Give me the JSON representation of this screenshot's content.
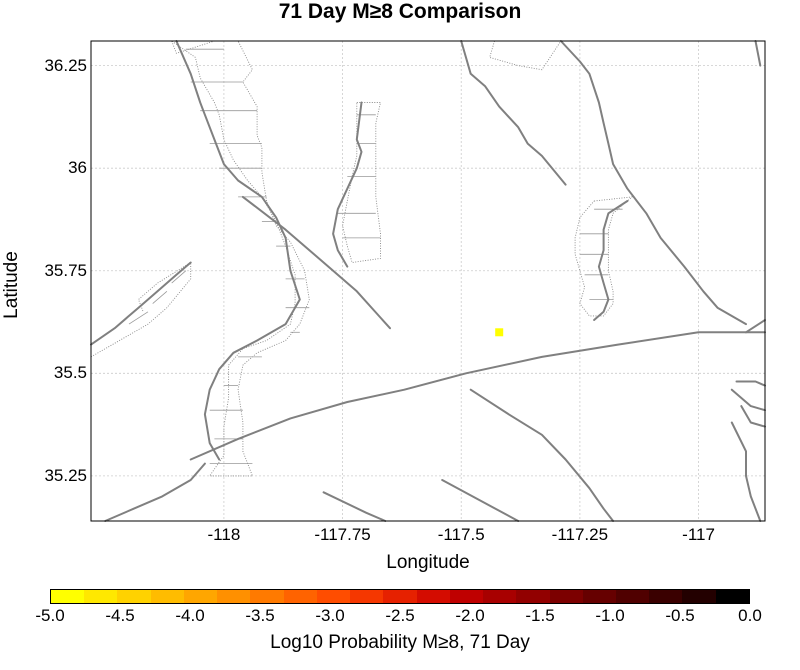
{
  "title": "71 Day M≥8 Comparison",
  "map": {
    "xlabel": "Longitude",
    "ylabel": "Latitude",
    "xlim": [
      -118.28,
      -116.86
    ],
    "ylim": [
      35.14,
      36.31
    ],
    "grid": true,
    "fault_color": "#808080",
    "xticks": [
      {
        "value": -118,
        "label": "-118"
      },
      {
        "value": -117.75,
        "label": "-117.75"
      },
      {
        "value": -117.5,
        "label": "-117.5"
      },
      {
        "value": -117.25,
        "label": "-117.25"
      },
      {
        "value": -117,
        "label": "-117"
      }
    ],
    "yticks": [
      {
        "value": 36.25,
        "label": "36.25"
      },
      {
        "value": 36,
        "label": "36"
      },
      {
        "value": 35.75,
        "label": "35.75"
      },
      {
        "value": 35.5,
        "label": "35.5"
      },
      {
        "value": 35.25,
        "label": "35.25"
      }
    ],
    "highlight_cell": {
      "lon": -117.42,
      "lat": 35.6,
      "color": "#ffff00"
    },
    "faults": [
      [
        [
          -118.1,
          36.31
        ],
        [
          -118.07,
          36.23
        ],
        [
          -118.05,
          36.16
        ],
        [
          -118.04,
          36.13
        ],
        [
          -118.02,
          36.07
        ],
        [
          -118.0,
          36.01
        ],
        [
          -117.97,
          35.97
        ],
        [
          -117.92,
          35.93
        ],
        [
          -117.89,
          35.88
        ],
        [
          -117.87,
          35.83
        ],
        [
          -117.86,
          35.75
        ],
        [
          -117.84,
          35.68
        ],
        [
          -117.87,
          35.62
        ],
        [
          -117.93,
          35.58
        ],
        [
          -117.98,
          35.55
        ],
        [
          -118.01,
          35.51
        ],
        [
          -118.03,
          35.46
        ],
        [
          -118.04,
          35.4
        ],
        [
          -118.03,
          35.33
        ],
        [
          -118.01,
          35.29
        ]
      ],
      [
        [
          -117.96,
          35.93
        ],
        [
          -117.87,
          35.85
        ],
        [
          -117.79,
          35.77
        ],
        [
          -117.72,
          35.7
        ],
        [
          -117.65,
          35.61
        ]
      ],
      [
        [
          -117.71,
          36.16
        ],
        [
          -117.72,
          36.07
        ],
        [
          -117.71,
          36.04
        ],
        [
          -117.72,
          36.0
        ],
        [
          -117.74,
          35.95
        ],
        [
          -117.76,
          35.9
        ],
        [
          -117.77,
          35.84
        ],
        [
          -117.76,
          35.8
        ],
        [
          -117.74,
          35.76
        ]
      ],
      [
        [
          -117.5,
          36.31
        ],
        [
          -117.48,
          36.23
        ],
        [
          -117.45,
          36.2
        ],
        [
          -117.42,
          36.15
        ],
        [
          -117.38,
          36.1
        ],
        [
          -117.36,
          36.06
        ],
        [
          -117.33,
          36.03
        ],
        [
          -117.28,
          35.96
        ]
      ],
      [
        [
          -117.29,
          36.31
        ],
        [
          -117.25,
          36.26
        ],
        [
          -117.23,
          36.23
        ],
        [
          -117.21,
          36.16
        ],
        [
          -117.2,
          36.11
        ],
        [
          -117.19,
          36.06
        ],
        [
          -117.18,
          36.01
        ],
        [
          -117.15,
          35.95
        ],
        [
          -117.11,
          35.89
        ],
        [
          -117.08,
          35.83
        ],
        [
          -117.03,
          35.76
        ],
        [
          -116.99,
          35.7
        ],
        [
          -116.96,
          35.66
        ],
        [
          -116.9,
          35.62
        ]
      ],
      [
        [
          -116.88,
          36.31
        ],
        [
          -116.87,
          36.25
        ]
      ],
      [
        [
          -117.15,
          35.92
        ],
        [
          -117.19,
          35.89
        ],
        [
          -117.2,
          35.85
        ],
        [
          -117.2,
          35.8
        ],
        [
          -117.21,
          35.76
        ],
        [
          -117.2,
          35.72
        ],
        [
          -117.19,
          35.68
        ],
        [
          -117.2,
          35.65
        ],
        [
          -117.22,
          35.63
        ]
      ],
      [
        [
          -118.28,
          35.57
        ],
        [
          -118.23,
          35.61
        ],
        [
          -118.18,
          35.66
        ],
        [
          -118.14,
          35.7
        ],
        [
          -118.1,
          35.74
        ],
        [
          -118.07,
          35.77
        ]
      ],
      [
        [
          -118.07,
          35.29
        ],
        [
          -117.97,
          35.34
        ],
        [
          -117.86,
          35.39
        ],
        [
          -117.74,
          35.43
        ],
        [
          -117.62,
          35.46
        ],
        [
          -117.49,
          35.5
        ],
        [
          -117.33,
          35.54
        ],
        [
          -117.17,
          35.57
        ],
        [
          -117.0,
          35.6
        ],
        [
          -116.86,
          35.6
        ]
      ],
      [
        [
          -118.25,
          35.14
        ],
        [
          -118.19,
          35.17
        ],
        [
          -118.13,
          35.2
        ],
        [
          -118.07,
          35.24
        ],
        [
          -118.04,
          35.28
        ]
      ],
      [
        [
          -117.79,
          35.21
        ],
        [
          -117.7,
          35.16
        ],
        [
          -117.66,
          35.14
        ]
      ],
      [
        [
          -117.48,
          35.46
        ],
        [
          -117.4,
          35.4
        ],
        [
          -117.33,
          35.35
        ],
        [
          -117.28,
          35.29
        ],
        [
          -117.23,
          35.22
        ],
        [
          -117.2,
          35.17
        ],
        [
          -117.18,
          35.14
        ]
      ],
      [
        [
          -117.54,
          35.24
        ],
        [
          -117.46,
          35.19
        ],
        [
          -117.38,
          35.14
        ]
      ],
      [
        [
          -116.92,
          35.48
        ],
        [
          -116.88,
          35.48
        ],
        [
          -116.86,
          35.47
        ]
      ],
      [
        [
          -116.93,
          35.46
        ],
        [
          -116.89,
          35.42
        ],
        [
          -116.86,
          35.41
        ]
      ],
      [
        [
          -116.91,
          35.42
        ],
        [
          -116.89,
          35.38
        ],
        [
          -116.86,
          35.37
        ]
      ],
      [
        [
          -116.93,
          35.38
        ],
        [
          -116.9,
          35.31
        ],
        [
          -116.9,
          35.25
        ],
        [
          -116.89,
          35.2
        ],
        [
          -116.87,
          35.14
        ]
      ],
      [
        [
          -116.9,
          35.6
        ],
        [
          -116.86,
          35.63
        ]
      ]
    ],
    "dotted_outlines": [
      [
        [
          -118.11,
          36.31
        ],
        [
          -118.1,
          36.28
        ],
        [
          -118.02,
          36.31
        ],
        [
          -117.97,
          36.31
        ],
        [
          -117.94,
          36.24
        ],
        [
          -117.96,
          36.21
        ],
        [
          -117.93,
          36.15
        ],
        [
          -117.93,
          36.08
        ],
        [
          -117.92,
          36.05
        ],
        [
          -117.92,
          35.99
        ],
        [
          -117.91,
          35.92
        ],
        [
          -117.89,
          35.86
        ],
        [
          -117.86,
          35.82
        ],
        [
          -117.83,
          35.75
        ],
        [
          -117.82,
          35.68
        ],
        [
          -117.84,
          35.62
        ],
        [
          -117.87,
          35.58
        ],
        [
          -117.93,
          35.55
        ],
        [
          -117.96,
          35.52
        ],
        [
          -117.97,
          35.46
        ],
        [
          -117.96,
          35.38
        ],
        [
          -117.96,
          35.31
        ],
        [
          -117.94,
          35.25
        ],
        [
          -118.03,
          35.25
        ],
        [
          -118.0,
          35.3
        ],
        [
          -118.0,
          35.37
        ],
        [
          -117.99,
          35.44
        ],
        [
          -117.99,
          35.52
        ],
        [
          -117.96,
          35.56
        ],
        [
          -117.91,
          35.58
        ],
        [
          -117.86,
          35.62
        ],
        [
          -117.85,
          35.67
        ],
        [
          -117.85,
          35.74
        ],
        [
          -117.87,
          35.81
        ],
        [
          -117.89,
          35.87
        ],
        [
          -117.92,
          35.93
        ],
        [
          -117.95,
          35.97
        ],
        [
          -117.98,
          36.02
        ],
        [
          -118.0,
          36.07
        ],
        [
          -118.01,
          36.13
        ],
        [
          -118.02,
          36.16
        ],
        [
          -118.05,
          36.22
        ],
        [
          -118.06,
          36.27
        ],
        [
          -118.11,
          36.31
        ]
      ],
      [
        [
          -117.72,
          36.16
        ],
        [
          -117.67,
          36.16
        ],
        [
          -117.68,
          36.11
        ],
        [
          -117.68,
          36.06
        ],
        [
          -117.68,
          36.01
        ],
        [
          -117.68,
          35.93
        ],
        [
          -117.67,
          35.84
        ],
        [
          -117.67,
          35.78
        ],
        [
          -117.73,
          35.77
        ],
        [
          -117.74,
          35.81
        ],
        [
          -117.75,
          35.86
        ],
        [
          -117.74,
          35.92
        ],
        [
          -117.73,
          35.98
        ],
        [
          -117.72,
          36.03
        ],
        [
          -117.72,
          36.08
        ],
        [
          -117.72,
          36.16
        ]
      ],
      [
        [
          -117.22,
          35.92
        ],
        [
          -117.14,
          35.93
        ],
        [
          -117.18,
          35.89
        ],
        [
          -117.19,
          35.85
        ],
        [
          -117.19,
          35.8
        ],
        [
          -117.19,
          35.75
        ],
        [
          -117.18,
          35.7
        ],
        [
          -117.18,
          35.67
        ],
        [
          -117.2,
          35.64
        ],
        [
          -117.23,
          35.64
        ],
        [
          -117.25,
          35.67
        ],
        [
          -117.24,
          35.71
        ],
        [
          -117.25,
          35.75
        ],
        [
          -117.26,
          35.79
        ],
        [
          -117.26,
          35.83
        ],
        [
          -117.25,
          35.88
        ],
        [
          -117.22,
          35.92
        ]
      ],
      [
        [
          -118.28,
          35.54
        ],
        [
          -118.22,
          35.58
        ],
        [
          -118.16,
          35.62
        ],
        [
          -118.12,
          35.66
        ],
        [
          -118.07,
          35.73
        ],
        [
          -118.07,
          35.77
        ],
        [
          -118.14,
          35.72
        ],
        [
          -118.18,
          35.68
        ],
        [
          -118.17,
          35.65
        ]
      ],
      [
        [
          -117.43,
          36.31
        ],
        [
          -117.44,
          36.27
        ],
        [
          -117.38,
          36.25
        ],
        [
          -117.33,
          36.24
        ],
        [
          -117.29,
          36.31
        ]
      ]
    ],
    "hatch_lines": [
      [
        [
          -118.08,
          36.29
        ],
        [
          -118.0,
          36.29
        ]
      ],
      [
        [
          -118.07,
          36.21
        ],
        [
          -117.96,
          36.21
        ]
      ],
      [
        [
          -118.05,
          36.14
        ],
        [
          -117.93,
          36.14
        ]
      ],
      [
        [
          -118.03,
          36.06
        ],
        [
          -117.92,
          36.06
        ]
      ],
      [
        [
          -118.01,
          36.0
        ],
        [
          -117.92,
          36.0
        ]
      ],
      [
        [
          -117.97,
          35.93
        ],
        [
          -117.91,
          35.93
        ]
      ],
      [
        [
          -117.92,
          35.87
        ],
        [
          -117.89,
          35.87
        ]
      ],
      [
        [
          -117.89,
          35.81
        ],
        [
          -117.86,
          35.81
        ]
      ],
      [
        [
          -117.87,
          35.73
        ],
        [
          -117.83,
          35.73
        ]
      ],
      [
        [
          -117.87,
          35.66
        ],
        [
          -117.82,
          35.66
        ]
      ],
      [
        [
          -117.86,
          35.6
        ],
        [
          -117.84,
          35.6
        ]
      ],
      [
        [
          -117.97,
          35.54
        ],
        [
          -117.92,
          35.54
        ]
      ],
      [
        [
          -118.0,
          35.47
        ],
        [
          -117.97,
          35.47
        ]
      ],
      [
        [
          -118.03,
          35.41
        ],
        [
          -117.96,
          35.41
        ]
      ],
      [
        [
          -118.02,
          35.34
        ],
        [
          -117.96,
          35.34
        ]
      ],
      [
        [
          -118.03,
          35.28
        ],
        [
          -117.94,
          35.28
        ]
      ],
      [
        [
          -117.72,
          36.13
        ],
        [
          -117.68,
          36.13
        ]
      ],
      [
        [
          -117.72,
          36.06
        ],
        [
          -117.68,
          36.06
        ]
      ],
      [
        [
          -117.74,
          35.98
        ],
        [
          -117.68,
          35.98
        ]
      ],
      [
        [
          -117.76,
          35.89
        ],
        [
          -117.68,
          35.89
        ]
      ],
      [
        [
          -117.75,
          35.83
        ],
        [
          -117.67,
          35.83
        ]
      ],
      [
        [
          -117.22,
          35.9
        ],
        [
          -117.16,
          35.9
        ]
      ],
      [
        [
          -117.25,
          35.84
        ],
        [
          -117.19,
          35.84
        ]
      ],
      [
        [
          -117.25,
          35.79
        ],
        [
          -117.19,
          35.79
        ]
      ],
      [
        [
          -117.24,
          35.74
        ],
        [
          -117.19,
          35.74
        ]
      ],
      [
        [
          -117.23,
          35.68
        ],
        [
          -117.18,
          35.68
        ]
      ],
      [
        [
          -118.2,
          35.62
        ],
        [
          -118.16,
          35.65
        ]
      ],
      [
        [
          -118.15,
          35.67
        ],
        [
          -118.12,
          35.7
        ]
      ],
      [
        [
          -118.11,
          35.72
        ],
        [
          -118.08,
          35.75
        ]
      ]
    ]
  },
  "colorbar": {
    "label": "Log10 Probability M≥8, 71 Day",
    "ticks": [
      "-5.0",
      "-4.5",
      "-4.0",
      "-3.5",
      "-3.0",
      "-2.5",
      "-2.0",
      "-1.5",
      "-1.0",
      "-0.5",
      "0.0"
    ],
    "colors": [
      "#ffff00",
      "#ffe800",
      "#ffd200",
      "#ffbc00",
      "#ffa600",
      "#ff9000",
      "#ff7a00",
      "#ff6300",
      "#ff4d00",
      "#f53700",
      "#e62100",
      "#d40c00",
      "#bf0000",
      "#a80000",
      "#920000",
      "#7c0000",
      "#660000",
      "#500000",
      "#3a0000",
      "#230000",
      "#000000"
    ]
  }
}
